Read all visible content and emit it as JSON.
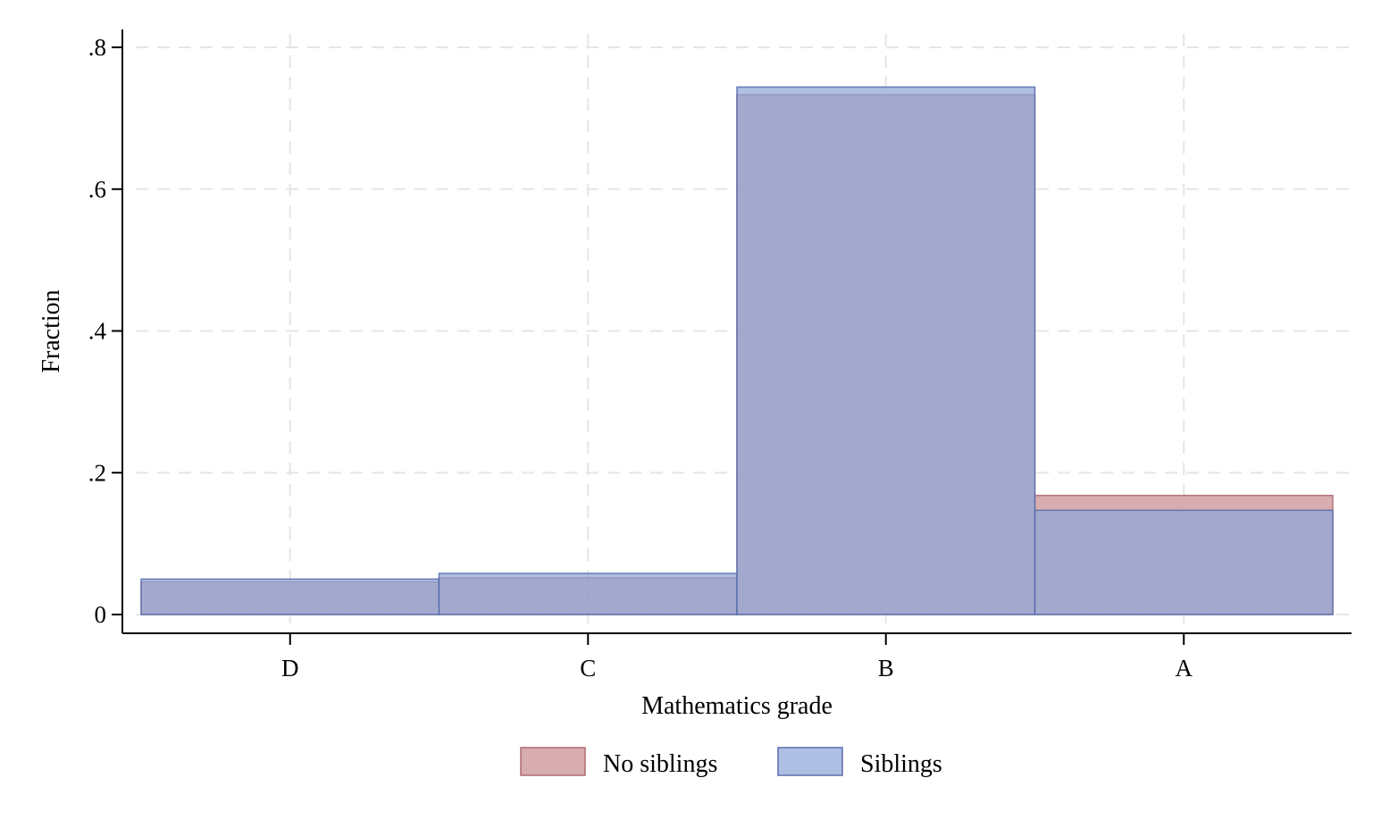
{
  "chart_data": {
    "type": "bar",
    "title": "",
    "xlabel": "Mathematics grade",
    "ylabel": "Fraction",
    "categories": [
      "D",
      "C",
      "B",
      "A"
    ],
    "ylim": [
      0,
      0.8
    ],
    "yticks": [
      0,
      0.2,
      0.4,
      0.6,
      0.8
    ],
    "ytick_labels": [
      "0",
      ".2",
      ".4",
      ".6",
      ".8"
    ],
    "grid": true,
    "legend_position": "bottom",
    "series": [
      {
        "name": "No siblings",
        "values": [
          0.046,
          0.052,
          0.733,
          0.168
        ],
        "fill": "#c98d92",
        "stroke": "#b06a72"
      },
      {
        "name": "Siblings",
        "values": [
          0.05,
          0.058,
          0.744,
          0.147
        ],
        "fill": "#8fa6d8",
        "stroke": "#5a6fae"
      }
    ]
  }
}
